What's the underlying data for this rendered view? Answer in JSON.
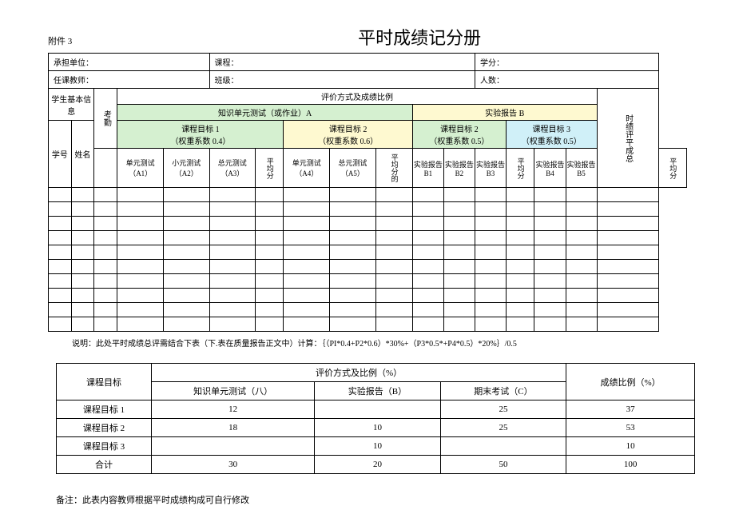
{
  "attach": "附件 3",
  "title": "平时成绩记分册",
  "info": {
    "unit_label": "承担单位：",
    "course_label": "课程：",
    "credit_label": "学分：",
    "teacher_label": "任课教师：",
    "class_label": "班级：",
    "count_label": "人数："
  },
  "headers": {
    "student_info": "学生基本信息",
    "attendance": "考勤",
    "eval_title": "评价方式及成绩比例",
    "knowledge_test": "知识单元测试（或作业）A",
    "experiment_report": "实验报告 B",
    "total": "时绩评平成总",
    "goal1": "课程目标 1",
    "goal1_weight": "（权重系数 0.4）",
    "goal2a": "课程目标 2",
    "goal2a_weight": "（权重系数 0.6）",
    "goal2b": "课程目标 2",
    "goal2b_weight": "（权重系数 0.5）",
    "goal3": "课程目标 3",
    "goal3_weight": "（权重系数 0.5）",
    "student_id": "学号",
    "student_name": "姓名",
    "a1": "单元测试（A1）",
    "a2": "小元测试（A2）",
    "a3": "总元测试（A3）",
    "avg1": "平均分",
    "a4": "单元测试（A4）",
    "a5": "总元测试（A5）",
    "avg2": "平均分的",
    "b1": "实验报告B1",
    "b2": "实验报告B2",
    "b3": "实验报告B3",
    "avg3": "平均分",
    "b4": "实验报告B4",
    "b5": "实验报告B5",
    "avg4": "平均分"
  },
  "note": "说明：此处平时成绩总评需结合下表（下.表在质量报告正文中）计算：｛（PI*0.4+P2*0.6）*30%+（P3*0.5*+P4*0.5）*20%｝/0.5",
  "summary": {
    "col_goal": "课程目标",
    "col_eval": "评价方式及比例（%）",
    "col_ratio": "成绩比例（%）",
    "col_test": "知识单元测试（八）",
    "col_exp": "实验报告（B）",
    "col_exam": "期末考试（C）",
    "rows": [
      {
        "goal": "课程目标 1",
        "test": "12",
        "exp": "",
        "exam": "25",
        "ratio": "37"
      },
      {
        "goal": "课程目标 2",
        "test": "18",
        "exp": "10",
        "exam": "25",
        "ratio": "53"
      },
      {
        "goal": "课程目标 3",
        "test": "",
        "exp": "10",
        "exam": "",
        "ratio": "10"
      },
      {
        "goal": "合计",
        "test": "30",
        "exp": "20",
        "exam": "50",
        "ratio": "100"
      }
    ]
  },
  "footer": "备注：此表内容教师根据平时成绩构成可自行修改",
  "colors": {
    "green": "#d5f0d0",
    "yellow": "#fef9d0",
    "blue": "#d0f0f8"
  }
}
